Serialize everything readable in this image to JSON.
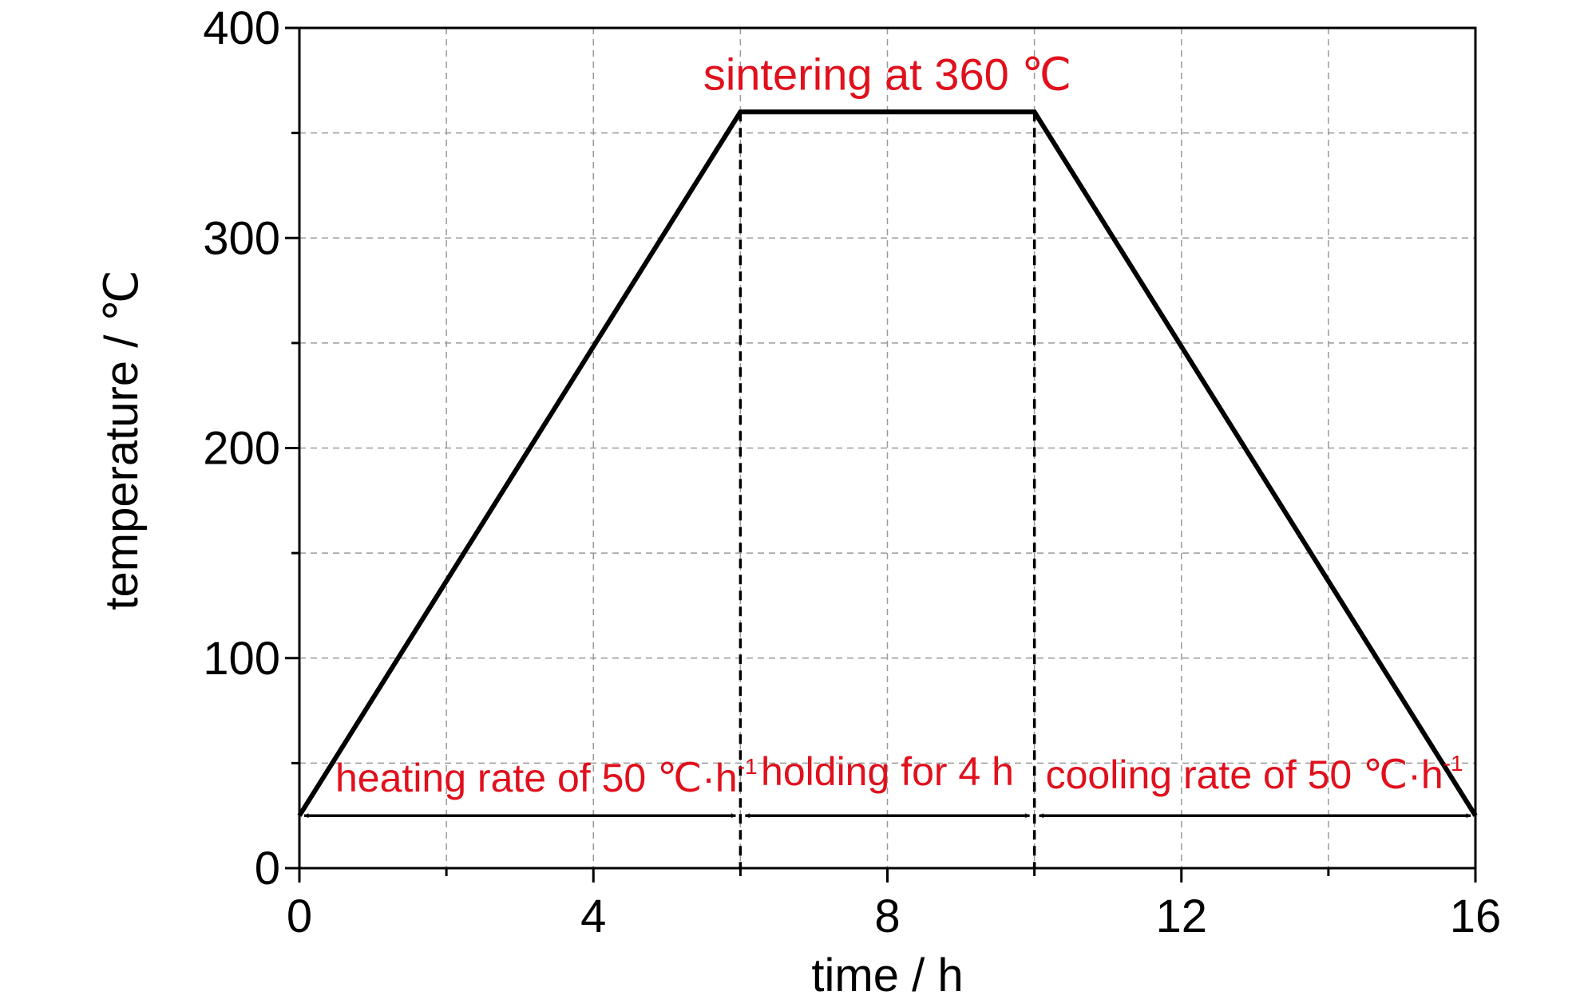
{
  "chart_data": {
    "type": "line",
    "xlabel": "time / h",
    "ylabel": "temperature / ℃",
    "xlim": [
      0,
      16
    ],
    "ylim": [
      0,
      400
    ],
    "xticks": [
      "0",
      "4",
      "8",
      "12",
      "16"
    ],
    "yticks": [
      "0",
      "100",
      "200",
      "300",
      "400"
    ],
    "grid": true,
    "series": [
      {
        "x": [
          0,
          6,
          10,
          16
        ],
        "y": [
          25,
          360,
          360,
          25
        ]
      }
    ],
    "stage_boundaries": [
      6,
      10
    ],
    "annotations": {
      "sintering": "sintering at 360 ℃",
      "heating": "heating rate of 50 ℃·h",
      "heating_sup": "-1",
      "holding": "holding for 4 h",
      "cooling": "cooling rate of 50 ℃·h",
      "cooling_sup": "-1"
    },
    "colors": {
      "line": "#000000",
      "annotation": "#e0101c",
      "grid": "#9a9a9a"
    }
  }
}
